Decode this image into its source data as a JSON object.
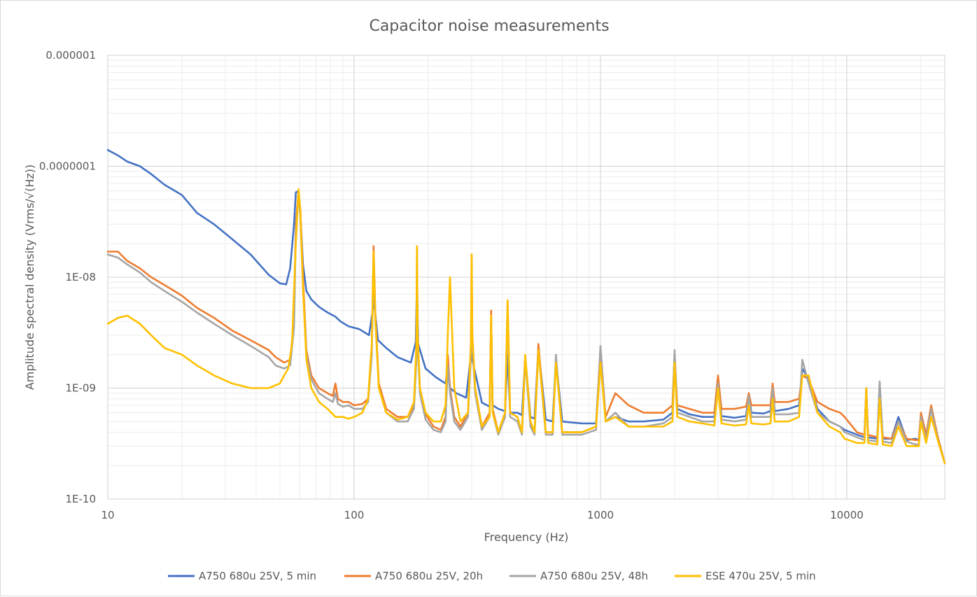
{
  "chart_data": {
    "type": "line",
    "title": "Capacitor noise measurements",
    "xlabel": "Frequency (Hz)",
    "ylabel": "Amplitude spectral density (Vrms/√(Hz))",
    "x_scale": "log",
    "y_scale": "log",
    "xlim": [
      10,
      25000
    ],
    "ylim": [
      1e-10,
      1e-06
    ],
    "x_ticks": [
      {
        "value": 10,
        "label": "10"
      },
      {
        "value": 100,
        "label": "100"
      },
      {
        "value": 1000,
        "label": "1000"
      },
      {
        "value": 10000,
        "label": "10000"
      }
    ],
    "y_ticks": [
      {
        "value": 1e-06,
        "label": "0.000001"
      },
      {
        "value": 1e-07,
        "label": "0.0000001"
      },
      {
        "value": 1e-08,
        "label": "1E-08"
      },
      {
        "value": 1e-09,
        "label": "1E-09"
      },
      {
        "value": 1e-10,
        "label": "1E-10"
      }
    ],
    "grid": {
      "major": true,
      "minor": true
    },
    "legend_position": "bottom",
    "series": [
      {
        "name": "A750 680u 25V, 5 min",
        "color": "#4472C4",
        "x": [
          10,
          11,
          12,
          13.5,
          15,
          17,
          20,
          23,
          27,
          32,
          38,
          45,
          50,
          53,
          55,
          57,
          58,
          59.5,
          60.5,
          62,
          64,
          67,
          72,
          78,
          84,
          88,
          95,
          105,
          115,
          119,
          120,
          121,
          125,
          135,
          150,
          170,
          178,
          180,
          182,
          195,
          215,
          235,
          240,
          245,
          260,
          285,
          298,
          300,
          302,
          330,
          355,
          360,
          365,
          385,
          410,
          420,
          430,
          460,
          480,
          495,
          520,
          540,
          560,
          600,
          640,
          660,
          700,
          760,
          840,
          960,
          1000,
          1050,
          1150,
          1300,
          1500,
          1800,
          1960,
          2000,
          2050,
          2300,
          2600,
          2900,
          3000,
          3100,
          3500,
          3900,
          4000,
          4100,
          4600,
          4900,
          5000,
          5100,
          5800,
          6400,
          6600,
          7000,
          7600,
          8500,
          9400,
          9800,
          11000,
          11800,
          12000,
          12200,
          13300,
          13600,
          14000,
          15200,
          16200,
          17500,
          19000,
          19600,
          20000,
          21000,
          22000,
          23500,
          25000
        ],
        "y": [
          1.4e-07,
          1.25e-07,
          1.1e-07,
          1e-07,
          8.5e-08,
          6.8e-08,
          5.5e-08,
          3.8e-08,
          3e-08,
          2.2e-08,
          1.6e-08,
          1.05e-08,
          8.8e-09,
          8.6e-09,
          1.2e-08,
          3e-08,
          5.8e-08,
          6e-08,
          3.8e-08,
          1.3e-08,
          7.5e-09,
          6.3e-09,
          5.4e-09,
          4.8e-09,
          4.4e-09,
          4e-09,
          3.6e-09,
          3.4e-09,
          3e-09,
          5e-09,
          1e-08,
          5.5e-09,
          2.7e-09,
          2.3e-09,
          1.9e-09,
          1.7e-09,
          2.6e-09,
          9.5e-09,
          2.5e-09,
          1.5e-09,
          1.25e-09,
          1.1e-09,
          1.6e-09,
          1e-09,
          9e-10,
          8.2e-10,
          2e-09,
          8.5e-09,
          1.8e-09,
          7.4e-10,
          6.8e-10,
          4e-09,
          7e-10,
          6.5e-10,
          6.2e-10,
          2e-09,
          6e-10,
          6e-10,
          5.7e-10,
          1.9e-09,
          5.5e-10,
          5.3e-10,
          2.3e-09,
          5.2e-10,
          5e-10,
          1.8e-09,
          5e-10,
          4.9e-10,
          4.8e-10,
          4.8e-10,
          2.2e-09,
          5e-10,
          5.5e-10,
          5e-10,
          5e-10,
          5.2e-10,
          6e-10,
          2e-09,
          6.5e-10,
          5.8e-10,
          5.5e-10,
          5.5e-10,
          1.2e-09,
          5.6e-10,
          5.4e-10,
          5.6e-10,
          9e-10,
          6e-10,
          5.9e-10,
          6.2e-10,
          1e-09,
          6.2e-10,
          6.5e-10,
          7e-10,
          1.5e-09,
          1.2e-09,
          6.5e-10,
          5e-10,
          4.5e-10,
          4.2e-10,
          3.8e-10,
          3.6e-10,
          1e-09,
          3.6e-10,
          3.5e-10,
          1.1e-09,
          3.5e-10,
          3.5e-10,
          5.5e-10,
          3.4e-10,
          3.5e-10,
          3.4e-10,
          5.5e-10,
          3.5e-10,
          6.5e-10,
          3.5e-10,
          2.1e-10
        ]
      },
      {
        "name": "A750 680u 25V, 20h",
        "color": "#ED7D31",
        "x": [
          10,
          11,
          12,
          13.5,
          15,
          17,
          20,
          23,
          27,
          32,
          38,
          45,
          48,
          52,
          55,
          57,
          58,
          59.5,
          60.5,
          62,
          64,
          67,
          72,
          78,
          82,
          84,
          86,
          90,
          95,
          100,
          108,
          114,
          118,
          120,
          122,
          126,
          135,
          150,
          165,
          175,
          179,
          180,
          181,
          185,
          195,
          210,
          225,
          235,
          240,
          245,
          255,
          270,
          290,
          298,
          300,
          302,
          310,
          330,
          355,
          360,
          365,
          385,
          410,
          420,
          430,
          460,
          480,
          495,
          520,
          540,
          560,
          600,
          640,
          660,
          700,
          760,
          840,
          960,
          1000,
          1050,
          1150,
          1300,
          1500,
          1800,
          1960,
          2000,
          2050,
          2300,
          2600,
          2900,
          3000,
          3100,
          3500,
          3900,
          4000,
          4100,
          4600,
          4900,
          5000,
          5100,
          5800,
          6400,
          6600,
          7000,
          7600,
          8500,
          9400,
          9800,
          11000,
          11800,
          12000,
          12200,
          13300,
          13600,
          14000,
          15200,
          16200,
          17500,
          19000,
          19600,
          20000,
          21000,
          22000,
          23500,
          25000
        ],
        "y": [
          1.7e-08,
          1.7e-08,
          1.4e-08,
          1.2e-08,
          1e-08,
          8.5e-09,
          6.8e-09,
          5.3e-09,
          4.3e-09,
          3.3e-09,
          2.7e-09,
          2.2e-09,
          1.9e-09,
          1.7e-09,
          1.8e-09,
          4e-09,
          3e-08,
          6e-08,
          4e-08,
          1e-08,
          2.2e-09,
          1.3e-09,
          1e-09,
          9e-10,
          8.5e-10,
          1.1e-09,
          8e-10,
          7.5e-10,
          7.5e-10,
          7e-10,
          7.2e-10,
          8e-10,
          2.5e-09,
          1.9e-08,
          4.5e-09,
          1.1e-09,
          6.5e-10,
          5.5e-10,
          5.5e-10,
          7e-10,
          2e-09,
          1.9e-08,
          3e-09,
          1e-09,
          5.8e-10,
          4.5e-10,
          4.2e-10,
          5.5e-10,
          2e-09,
          1e-09,
          5.5e-10,
          4.5e-10,
          6e-10,
          2.5e-09,
          1.6e-08,
          3e-09,
          1e-09,
          4.5e-10,
          6e-10,
          5e-09,
          6.5e-10,
          4e-10,
          6e-10,
          6e-09,
          6e-10,
          5.5e-10,
          4e-10,
          1.9e-09,
          5e-10,
          4e-10,
          2.5e-09,
          4e-10,
          4e-10,
          1.8e-09,
          4e-10,
          4e-10,
          4e-10,
          4.5e-10,
          2.3e-09,
          5.5e-10,
          9e-10,
          7e-10,
          6e-10,
          6e-10,
          7e-10,
          2e-09,
          7e-10,
          6.5e-10,
          6e-10,
          6e-10,
          1.3e-09,
          6.5e-10,
          6.5e-10,
          6.8e-10,
          9e-10,
          7e-10,
          7e-10,
          7e-10,
          1.1e-09,
          7.5e-10,
          7.5e-10,
          8e-10,
          1.3e-09,
          1.2e-09,
          7.5e-10,
          6.5e-10,
          6e-10,
          5.5e-10,
          4e-10,
          3.8e-10,
          1e-09,
          3.8e-10,
          3.6e-10,
          9e-10,
          3.6e-10,
          3.5e-10,
          5e-10,
          3.5e-10,
          3.4e-10,
          3.4e-10,
          6e-10,
          3.8e-10,
          7e-10,
          3.5e-10,
          2.1e-10
        ]
      },
      {
        "name": "A750 680u 25V, 48h",
        "color": "#A5A5A5",
        "x": [
          10,
          11,
          12,
          13.5,
          15,
          17,
          20,
          23,
          27,
          32,
          38,
          45,
          48,
          52,
          55,
          57,
          58,
          59.5,
          60.5,
          62,
          64,
          67,
          72,
          78,
          82,
          84,
          86,
          90,
          95,
          100,
          108,
          114,
          118,
          120,
          122,
          126,
          135,
          150,
          165,
          175,
          179,
          180,
          181,
          185,
          195,
          210,
          225,
          235,
          240,
          245,
          255,
          270,
          290,
          298,
          300,
          302,
          310,
          330,
          355,
          360,
          365,
          385,
          410,
          420,
          430,
          460,
          480,
          495,
          520,
          540,
          560,
          600,
          640,
          660,
          700,
          760,
          840,
          960,
          1000,
          1050,
          1150,
          1300,
          1500,
          1800,
          1960,
          2000,
          2050,
          2300,
          2600,
          2900,
          3000,
          3100,
          3500,
          3900,
          4000,
          4100,
          4600,
          4900,
          5000,
          5100,
          5800,
          6400,
          6600,
          7000,
          7600,
          8500,
          9400,
          9800,
          11000,
          11800,
          12000,
          12200,
          13300,
          13600,
          14000,
          15200,
          16200,
          17500,
          19000,
          19600,
          20000,
          21000,
          22000,
          23500,
          25000
        ],
        "y": [
          1.6e-08,
          1.5e-08,
          1.3e-08,
          1.1e-08,
          9e-09,
          7.5e-09,
          6e-09,
          4.8e-09,
          3.8e-09,
          3e-09,
          2.4e-09,
          1.9e-09,
          1.6e-09,
          1.5e-09,
          1.6e-09,
          3.5e-09,
          2.5e-08,
          5.5e-08,
          3.5e-08,
          8e-09,
          2e-09,
          1.2e-09,
          9e-10,
          8e-10,
          7.5e-10,
          9e-10,
          7.2e-10,
          6.8e-10,
          7e-10,
          6.5e-10,
          6.5e-10,
          7.5e-10,
          2e-09,
          1.5e-08,
          4e-09,
          1e-09,
          6e-10,
          5e-10,
          5e-10,
          6.5e-10,
          1.8e-09,
          1e-08,
          2.5e-09,
          9e-10,
          5.2e-10,
          4.2e-10,
          4e-10,
          5e-10,
          1.6e-09,
          9e-10,
          5e-10,
          4.2e-10,
          5.5e-10,
          2e-09,
          1e-08,
          2.5e-09,
          9e-10,
          4.2e-10,
          5.5e-10,
          4e-09,
          6e-10,
          3.8e-10,
          5.5e-10,
          5e-09,
          5.5e-10,
          5e-10,
          3.8e-10,
          1.8e-09,
          4.5e-10,
          3.8e-10,
          2.2e-09,
          3.8e-10,
          3.8e-10,
          2e-09,
          3.8e-10,
          3.8e-10,
          3.8e-10,
          4.2e-10,
          2.4e-09,
          5e-10,
          6e-10,
          4.5e-10,
          4.5e-10,
          4.8e-10,
          5.5e-10,
          2.2e-09,
          6e-10,
          5.5e-10,
          5e-10,
          5e-10,
          1.1e-09,
          5.2e-10,
          5e-10,
          5.2e-10,
          8.5e-10,
          5.5e-10,
          5.5e-10,
          5.5e-10,
          1e-09,
          5.8e-10,
          5.8e-10,
          6e-10,
          1.8e-09,
          1.1e-09,
          6e-10,
          5e-10,
          4.5e-10,
          4e-10,
          3.6e-10,
          3.4e-10,
          1e-09,
          3.4e-10,
          3.3e-10,
          1.15e-09,
          3.3e-10,
          3.2e-10,
          5e-10,
          3.3e-10,
          3.1e-10,
          3.1e-10,
          5.5e-10,
          3.4e-10,
          6.5e-10,
          3.3e-10,
          2.1e-10
        ]
      },
      {
        "name": "ESE 470u 25V, 5 min",
        "color": "#FFC000",
        "x": [
          10,
          11,
          12,
          13.5,
          15,
          17,
          20,
          23,
          27,
          32,
          38,
          45,
          50,
          52,
          54,
          56,
          58,
          59.5,
          60.5,
          62,
          64,
          67,
          72,
          78,
          84,
          90,
          95,
          100,
          108,
          114,
          118,
          120,
          122,
          126,
          135,
          150,
          165,
          175,
          179,
          180,
          181,
          185,
          195,
          210,
          225,
          235,
          240,
          245,
          255,
          270,
          290,
          298,
          300,
          302,
          310,
          330,
          355,
          360,
          365,
          385,
          410,
          420,
          430,
          460,
          480,
          495,
          520,
          540,
          560,
          600,
          640,
          660,
          700,
          760,
          840,
          960,
          1000,
          1050,
          1150,
          1300,
          1500,
          1800,
          1960,
          2000,
          2050,
          2300,
          2600,
          2900,
          3000,
          3100,
          3500,
          3900,
          4000,
          4100,
          4600,
          4900,
          5000,
          5100,
          5800,
          6400,
          6600,
          7000,
          7600,
          8500,
          9400,
          9800,
          11000,
          11800,
          12000,
          12200,
          13300,
          13600,
          14000,
          15200,
          16200,
          17500,
          19000,
          19600,
          20000,
          21000,
          22000,
          23500,
          25000
        ],
        "y": [
          3.8e-09,
          4.3e-09,
          4.5e-09,
          3.8e-09,
          3e-09,
          2.3e-09,
          2e-09,
          1.6e-09,
          1.3e-09,
          1.1e-09,
          1e-09,
          1e-09,
          1.1e-09,
          1.3e-09,
          1.5e-09,
          2.5e-09,
          2e-08,
          6.2e-08,
          4e-08,
          8e-09,
          1.8e-09,
          1e-09,
          7.5e-10,
          6.5e-10,
          5.5e-10,
          5.5e-10,
          5.3e-10,
          5.5e-10,
          6e-10,
          8e-10,
          2.5e-09,
          1.7e-08,
          4e-09,
          1e-09,
          6e-10,
          5.2e-10,
          5.5e-10,
          7.5e-10,
          2.5e-09,
          1.9e-08,
          3e-09,
          1e-09,
          6e-10,
          5e-10,
          5e-10,
          7e-10,
          3e-09,
          1e-08,
          1e-09,
          5e-10,
          6e-10,
          2.5e-09,
          1.6e-08,
          3e-09,
          1e-09,
          4.5e-10,
          5.5e-10,
          4.5e-09,
          6e-10,
          4e-10,
          6e-10,
          6.2e-09,
          6e-10,
          5.5e-10,
          4e-10,
          2e-09,
          5e-10,
          4e-10,
          2.2e-09,
          4e-10,
          4e-10,
          1.7e-09,
          4e-10,
          4e-10,
          4e-10,
          4.5e-10,
          1.7e-09,
          5e-10,
          5.5e-10,
          4.5e-10,
          4.5e-10,
          4.5e-10,
          5e-10,
          1.7e-09,
          5.5e-10,
          5e-10,
          4.8e-10,
          4.6e-10,
          1e-09,
          4.8e-10,
          4.6e-10,
          4.7e-10,
          7e-10,
          4.8e-10,
          4.7e-10,
          4.8e-10,
          8e-10,
          5e-10,
          5e-10,
          5.5e-10,
          1.3e-09,
          1.3e-09,
          6e-10,
          4.5e-10,
          4e-10,
          3.5e-10,
          3.2e-10,
          3.2e-10,
          1e-09,
          3.2e-10,
          3.1e-10,
          8e-10,
          3.1e-10,
          3e-10,
          4.5e-10,
          3e-10,
          3e-10,
          3e-10,
          5e-10,
          3.2e-10,
          5.5e-10,
          3.3e-10,
          2.1e-10
        ]
      }
    ]
  }
}
